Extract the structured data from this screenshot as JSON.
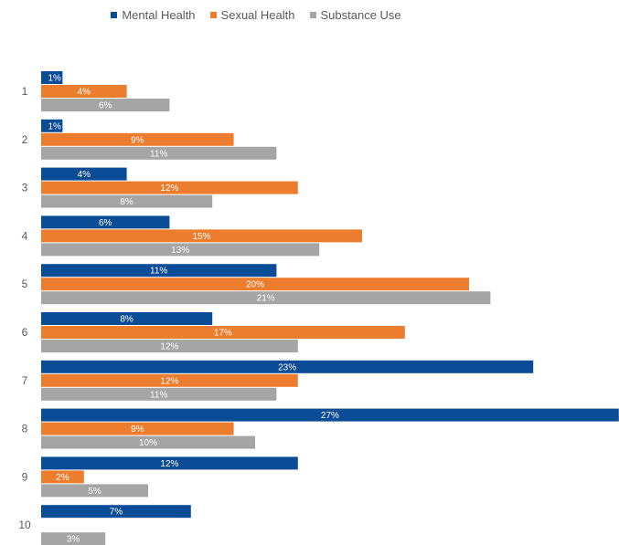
{
  "colors": {
    "mental_health": "#0b4c97",
    "sexual_health": "#ec7d2f",
    "substance_use": "#a5a5a5"
  },
  "legend": {
    "mental_health": "Mental Health",
    "sexual_health": "Sexual Health",
    "substance_use": "Substance Use"
  },
  "chart_data": {
    "type": "bar",
    "orientation": "horizontal",
    "categories": [
      "1",
      "2",
      "3",
      "4",
      "5",
      "6",
      "7",
      "8",
      "9",
      "10"
    ],
    "series": [
      {
        "name": "Mental Health",
        "values": [
          1,
          1,
          4,
          6,
          11,
          8,
          23,
          27,
          12,
          7
        ],
        "labels": [
          "1%",
          "1%",
          "4%",
          "6%",
          "11%",
          "8%",
          "23%",
          "27%",
          "12%",
          "7%"
        ]
      },
      {
        "name": "Sexual Health",
        "values": [
          4,
          9,
          12,
          15,
          20,
          17,
          12,
          9,
          2,
          0
        ],
        "labels": [
          "4%",
          "9%",
          "12%",
          "15%",
          "20%",
          "17%",
          "12%",
          "9%",
          "2%",
          ""
        ]
      },
      {
        "name": "Substance Use",
        "values": [
          6,
          11,
          8,
          13,
          21,
          12,
          11,
          10,
          5,
          3
        ],
        "labels": [
          "6%",
          "11%",
          "8%",
          "13%",
          "21%",
          "12%",
          "11%",
          "10%",
          "5%",
          "3%"
        ]
      }
    ],
    "title": "",
    "xlabel": "",
    "ylabel": "",
    "legend_position": "top",
    "grid": false
  }
}
